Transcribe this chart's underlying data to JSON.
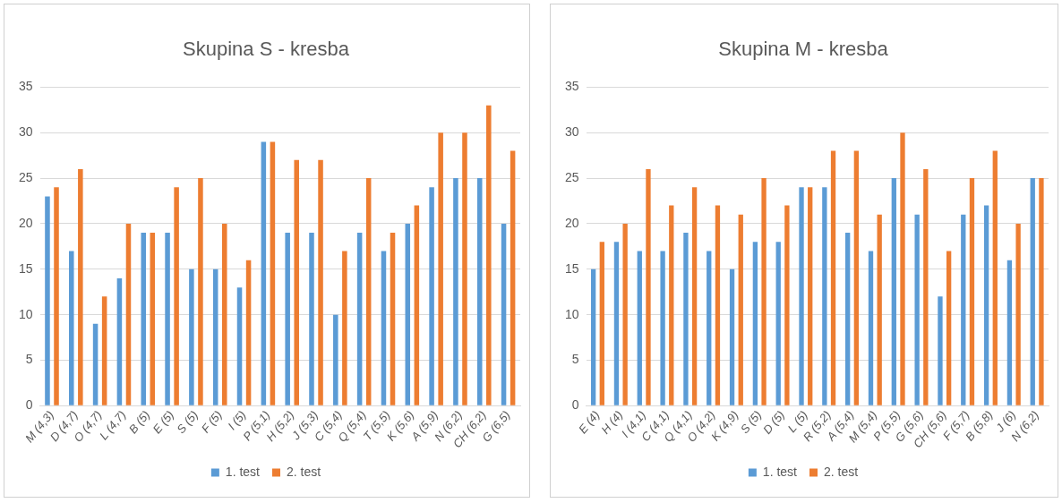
{
  "chart_data": [
    {
      "type": "bar",
      "title": "Skupina S - kresba",
      "categories": [
        "M (4,3)",
        "D (4,7)",
        "O (4,7)",
        "L (4,7)",
        "B (5)",
        "E (5)",
        "S (5)",
        "F (5)",
        "I (5)",
        "P (5,1)",
        "H (5,2)",
        "J (5,3)",
        "C (5,4)",
        "Q (5,4)",
        "T (5,5)",
        "K (5,6)",
        "A (5,9)",
        "N (6,2)",
        "CH (6,2)",
        "G (6,5)"
      ],
      "series": [
        {
          "name": "1. test",
          "color": "#5b9bd5",
          "values": [
            23,
            17,
            9,
            14,
            19,
            19,
            15,
            15,
            13,
            29,
            19,
            19,
            10,
            19,
            17,
            20,
            24,
            25,
            25,
            20
          ]
        },
        {
          "name": "2. test",
          "color": "#ed7d31",
          "values": [
            24,
            26,
            12,
            20,
            19,
            24,
            25,
            20,
            16,
            29,
            27,
            27,
            17,
            25,
            19,
            22,
            30,
            30,
            33,
            28
          ]
        }
      ],
      "ylim": [
        0,
        35
      ],
      "yticks": [
        0,
        5,
        10,
        15,
        20,
        25,
        30,
        35
      ],
      "grid": "y",
      "legend": "bottom"
    },
    {
      "type": "bar",
      "title": "Skupina M - kresba",
      "categories": [
        "E (4)",
        "H (4)",
        "I (4,1)",
        "C (4,1)",
        "Q (4,1)",
        "O (4,2)",
        "K (4,9)",
        "S (5)",
        "D (5)",
        "L (5)",
        "R (5,2)",
        "A (5,4)",
        "M (5,4)",
        "P (5,5)",
        "G (5,6)",
        "CH (5,6)",
        "F (5,7)",
        "B (5,8)",
        "J (6)",
        "N (6,2)"
      ],
      "series": [
        {
          "name": "1. test",
          "color": "#5b9bd5",
          "values": [
            15,
            18,
            17,
            17,
            19,
            17,
            15,
            18,
            18,
            24,
            24,
            19,
            17,
            25,
            21,
            12,
            21,
            22,
            16,
            25
          ]
        },
        {
          "name": "2. test",
          "color": "#ed7d31",
          "values": [
            18,
            20,
            26,
            22,
            24,
            22,
            21,
            25,
            22,
            24,
            28,
            28,
            21,
            30,
            26,
            17,
            25,
            28,
            20,
            25
          ]
        }
      ],
      "ylim": [
        0,
        35
      ],
      "yticks": [
        0,
        5,
        10,
        15,
        20,
        25,
        30,
        35
      ],
      "grid": "y",
      "legend": "bottom"
    }
  ]
}
